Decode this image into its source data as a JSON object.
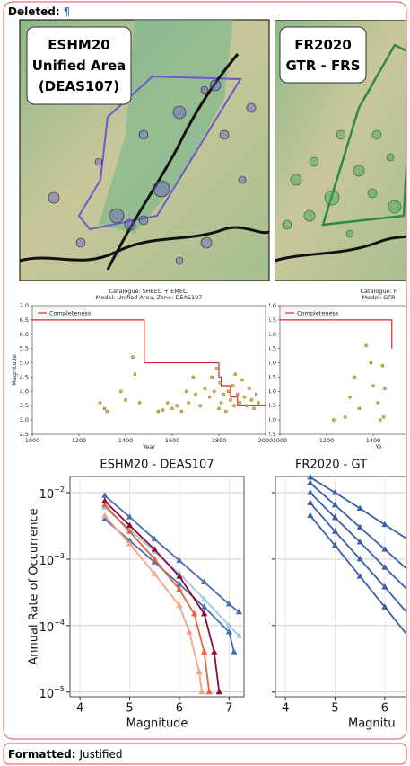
{
  "header": {
    "label": "Deleted:",
    "text": "¶"
  },
  "maps": [
    {
      "title_lines": [
        "ESHM20",
        "Unified Area",
        "(DEAS107)"
      ]
    },
    {
      "title_lines": [
        "FR2020",
        "GTR - FRS"
      ]
    }
  ],
  "chart_data": [
    {
      "type": "scatter",
      "title": "Catalogue: SHEEC + EMEC,",
      "subtitle": "Model: Unified Area,  Zone: DEAS107",
      "x_label": "Year",
      "y_label": "Magnitude",
      "xlim": [
        1000,
        2000
      ],
      "ylim": [
        2.5,
        7.0
      ],
      "xticks": [
        1000,
        1200,
        1400,
        1600,
        1800,
        2000
      ],
      "yticks": [
        2.5,
        {
          "value": 3.0,
          "label": "3.0"
        },
        3.5,
        {
          "value": 4.0,
          "label": "4.0"
        },
        4.5,
        {
          "value": 5.0,
          "label": "5.0"
        },
        5.5,
        {
          "value": 6.0,
          "label": "6.0"
        },
        6.5,
        {
          "value": 7.0,
          "label": "7.0"
        }
      ],
      "legend": "upper left",
      "series": [
        {
          "name": "Completeness",
          "color": "#d62728",
          "style": "line",
          "x": [
            1000,
            1480,
            1480,
            1800,
            1800,
            1810,
            1810,
            1850,
            1850,
            1880,
            1880,
            2000
          ],
          "values": [
            6.5,
            6.5,
            5.0,
            5.0,
            4.5,
            4.5,
            4.2,
            4.2,
            3.8,
            3.8,
            3.5,
            3.5
          ]
        },
        {
          "color": "#e8c61a",
          "style": "points",
          "x": [
            1290,
            1310,
            1320,
            1380,
            1400,
            1430,
            1440,
            1460,
            1540,
            1560,
            1580,
            1600,
            1620,
            1640,
            1660,
            1670,
            1690,
            1700,
            1720,
            1740,
            1760,
            1770,
            1780,
            1790,
            1800,
            1805,
            1810,
            1820,
            1830,
            1840,
            1850,
            1860,
            1865,
            1870,
            1880,
            1890,
            1900,
            1910,
            1920,
            1930,
            1940,
            1950,
            1960,
            1970
          ],
          "values": [
            3.6,
            3.4,
            3.3,
            4.0,
            3.7,
            5.2,
            4.6,
            3.6,
            3.3,
            3.35,
            3.6,
            3.4,
            3.5,
            3.3,
            4.0,
            3.6,
            4.5,
            3.9,
            3.5,
            4.1,
            3.8,
            4.5,
            4.0,
            4.8,
            3.4,
            4.3,
            3.6,
            3.9,
            3.3,
            4.0,
            3.7,
            4.2,
            3.5,
            4.6,
            3.9,
            3.6,
            4.4,
            3.8,
            3.5,
            4.1,
            3.7,
            3.4,
            3.9,
            3.6
          ]
        }
      ]
    },
    {
      "type": "scatter",
      "title": "Catalogue: F",
      "subtitle": "Model: GTR",
      "x_label": "Ye",
      "y_label": "Magnitude",
      "xlim": [
        1000,
        2000
      ],
      "ylim": [
        2.5,
        7.0
      ],
      "xticks": [
        1000,
        1200,
        1400
      ],
      "yticks": [
        2.5,
        {
          "value": 3.0,
          "label": "3.0"
        },
        3.5,
        {
          "value": 4.0,
          "label": "4.0"
        },
        4.5,
        {
          "value": 5.0,
          "label": "5.0"
        },
        5.5,
        {
          "value": 6.0,
          "label": "6.0"
        },
        6.5,
        {
          "value": 7.0,
          "label": "7.0"
        }
      ],
      "legend": "upper left",
      "series": [
        {
          "name": "Completeness",
          "color": "#d62728",
          "style": "line",
          "x": [
            1000,
            1480,
            1480
          ],
          "values": [
            6.5,
            6.5,
            5.5
          ]
        },
        {
          "color": "#e8c61a",
          "style": "points",
          "x": [
            1230,
            1280,
            1300,
            1320,
            1340,
            1370,
            1390,
            1400,
            1420,
            1430,
            1440,
            1445,
            1450
          ],
          "values": [
            3.0,
            3.1,
            3.8,
            4.5,
            3.4,
            5.6,
            5.0,
            4.2,
            3.6,
            3.0,
            4.9,
            3.1,
            4.1
          ]
        }
      ]
    },
    {
      "type": "line",
      "title": "ESHM20 - DEAS107",
      "x_label": "Magnitude",
      "y_label": "Annual Rate of Occurrence",
      "log_y": true,
      "grid": true,
      "marker": "triangle",
      "xlim": [
        3.8,
        7.3
      ],
      "ylim": [
        8.5e-06,
        0.0175
      ],
      "xticks": [
        4,
        5,
        6,
        7
      ],
      "yticks": [
        {
          "value": 0.01,
          "label": "10",
          "exponent": "−2"
        },
        {
          "value": 0.001,
          "label": "10",
          "exponent": "−3"
        },
        {
          "value": 0.0001,
          "label": "10",
          "exponent": "−4"
        },
        {
          "value": 1e-05,
          "label": "10",
          "exponent": "−5"
        }
      ],
      "series": [
        {
          "color": "#4a6fb0",
          "x": [
            4.5,
            5,
            5.5,
            6,
            6.5,
            7,
            7.2
          ],
          "values": [
            0.009,
            0.0043,
            0.002,
            0.00095,
            0.00045,
            0.00021,
            0.00016
          ]
        },
        {
          "color": "#9ecae1",
          "x": [
            4.5,
            5,
            5.5,
            6,
            6.5,
            7,
            7.2
          ],
          "values": [
            0.006,
            0.0028,
            0.0013,
            0.0006,
            0.00025,
            0.0001,
            7e-05
          ]
        },
        {
          "color": "#4a6fb0",
          "x": [
            4.5,
            5,
            5.5,
            6,
            6.5,
            7,
            7.1
          ],
          "values": [
            0.004,
            0.0019,
            0.0009,
            0.00042,
            0.00019,
            8e-05,
            4e-05
          ]
        },
        {
          "color": "#e8603c",
          "x": [
            4.5,
            5,
            5.5,
            6,
            6.3,
            6.5,
            6.6
          ],
          "values": [
            0.0065,
            0.0026,
            0.001,
            0.00035,
            0.00015,
            4e-05,
            1e-05
          ]
        },
        {
          "color": "#f4a582",
          "x": [
            4.5,
            5,
            5.5,
            6,
            6.2,
            6.4,
            6.45
          ],
          "values": [
            0.0045,
            0.0017,
            0.0006,
            0.0002,
            8e-05,
            2e-05,
            1e-05
          ]
        },
        {
          "color": "#8b0a3a",
          "x": [
            4.5,
            5,
            5.5,
            6,
            6.5,
            6.7,
            6.8
          ],
          "values": [
            0.0075,
            0.0032,
            0.0014,
            0.00055,
            0.00015,
            4e-05,
            1e-05
          ]
        }
      ]
    },
    {
      "type": "line",
      "title": "FR2020 - GT",
      "x_label": "Magnitu",
      "y_label": "Annual Rate of Occurrence",
      "log_y": true,
      "grid": true,
      "marker": "triangle",
      "xlim": [
        3.8,
        7.3
      ],
      "ylim": [
        8.5e-06,
        0.0175
      ],
      "xticks": [
        4,
        5,
        6
      ],
      "yticks": [
        {
          "value": 0.01,
          "label": "10",
          "exponent": "−2"
        },
        {
          "value": 0.001,
          "label": "10",
          "exponent": "−3"
        },
        {
          "value": 0.0001,
          "label": "10",
          "exponent": "−4"
        },
        {
          "value": 1e-05,
          "label": "10",
          "exponent": "−5"
        }
      ],
      "series": [
        {
          "color": "#3a5fa8",
          "x": [
            4.5,
            5,
            5.5,
            6,
            6.5
          ],
          "values": [
            0.017,
            0.01,
            0.0058,
            0.0033,
            0.0019
          ]
        },
        {
          "color": "#3a5fa8",
          "x": [
            4.5,
            5,
            5.5,
            6,
            6.5
          ],
          "values": [
            0.014,
            0.0065,
            0.003,
            0.0014,
            0.00065
          ]
        },
        {
          "color": "#3a5fa8",
          "x": [
            4.5,
            5,
            5.5,
            6,
            6.5
          ],
          "values": [
            0.01,
            0.0042,
            0.0018,
            0.00075,
            0.00032
          ]
        },
        {
          "color": "#3a5fa8",
          "x": [
            4.5,
            5,
            5.5,
            6,
            6.5
          ],
          "values": [
            0.007,
            0.0026,
            0.001,
            0.00038,
            0.00014
          ]
        },
        {
          "color": "#3a5fa8",
          "x": [
            4.5,
            5,
            5.5,
            6,
            6.5
          ],
          "values": [
            0.0045,
            0.0016,
            0.00055,
            0.00019,
            6.5e-05
          ]
        }
      ]
    }
  ],
  "footer": {
    "label": "Formatted:",
    "text": "Justified"
  }
}
